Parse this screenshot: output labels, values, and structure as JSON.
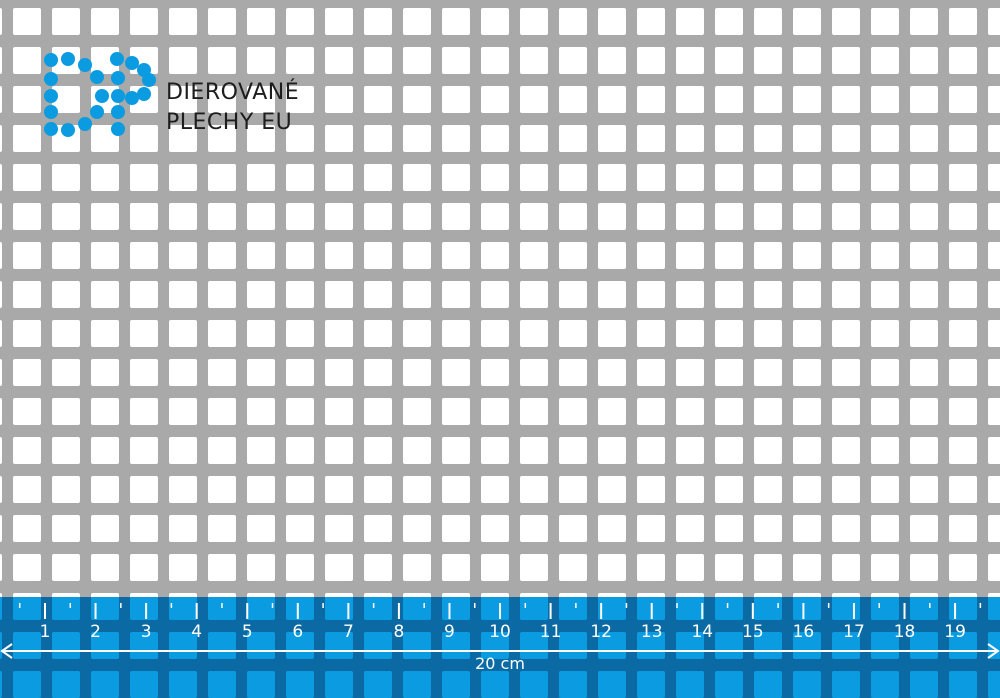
{
  "brand": {
    "line1": "DIEROVANÉ",
    "line2": "PLECHY EU",
    "logo_text": "DP"
  },
  "colors": {
    "metal": "#a9a9a9",
    "hole": "#ffffff",
    "ruler_band": "#0b6aa3",
    "ruler_hole": "#0a9be0",
    "logo": "#0a9be0"
  },
  "ruler": {
    "unit_labels": [
      "1",
      "2",
      "3",
      "4",
      "5",
      "6",
      "7",
      "8",
      "9",
      "10",
      "11",
      "12",
      "13",
      "14",
      "15",
      "16",
      "17",
      "18",
      "19"
    ],
    "total_label": "20 cm"
  }
}
